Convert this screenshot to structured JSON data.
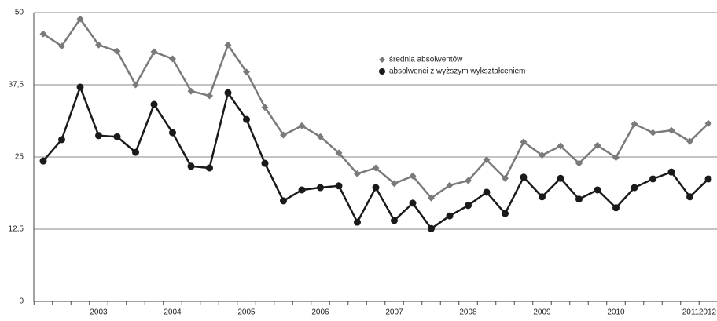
{
  "chart_data": {
    "type": "line",
    "categories": [
      null,
      null,
      null,
      "2003",
      null,
      null,
      null,
      "2004",
      null,
      null,
      null,
      "2005",
      null,
      null,
      null,
      "2006",
      null,
      null,
      null,
      "2007",
      null,
      null,
      null,
      "2008",
      null,
      null,
      null,
      "2009",
      null,
      null,
      null,
      "2010",
      null,
      null,
      null,
      "2011",
      "2012"
    ],
    "series": [
      {
        "name": "średnia absolwentów",
        "color": "#7a7a7a",
        "marker": "diamond",
        "values": [
          46.3,
          44.2,
          48.9,
          44.4,
          43.3,
          37.5,
          43.2,
          42.0,
          36.4,
          35.6,
          44.4,
          39.7,
          33.6,
          28.8,
          30.4,
          28.5,
          25.7,
          22.1,
          23.1,
          20.4,
          21.7,
          17.9,
          20.1,
          20.9,
          24.5,
          21.3,
          27.6,
          25.3,
          26.9,
          23.9,
          27.0,
          24.9,
          30.7,
          29.2,
          29.6,
          27.7,
          30.8
        ]
      },
      {
        "name": "absolwenci z wyższym wykształceniem",
        "color": "#1a1a1a",
        "marker": "circle",
        "values": [
          24.3,
          28.0,
          37.1,
          28.7,
          28.5,
          25.8,
          34.1,
          29.2,
          23.4,
          23.1,
          36.1,
          31.5,
          23.9,
          17.4,
          19.3,
          19.7,
          20.0,
          13.7,
          19.7,
          14.0,
          17.0,
          12.6,
          14.8,
          16.6,
          18.9,
          15.2,
          21.5,
          18.1,
          21.3,
          17.7,
          19.3,
          16.2,
          19.7,
          21.2,
          22.4,
          18.1,
          21.2
        ]
      }
    ],
    "ylim": [
      0,
      50
    ],
    "yticks": [
      0,
      {
        "value": 12.5,
        "label": "12,5"
      },
      25,
      {
        "value": 37.5,
        "label": "37,5"
      },
      50
    ],
    "grid": true,
    "legend": "top-center"
  }
}
